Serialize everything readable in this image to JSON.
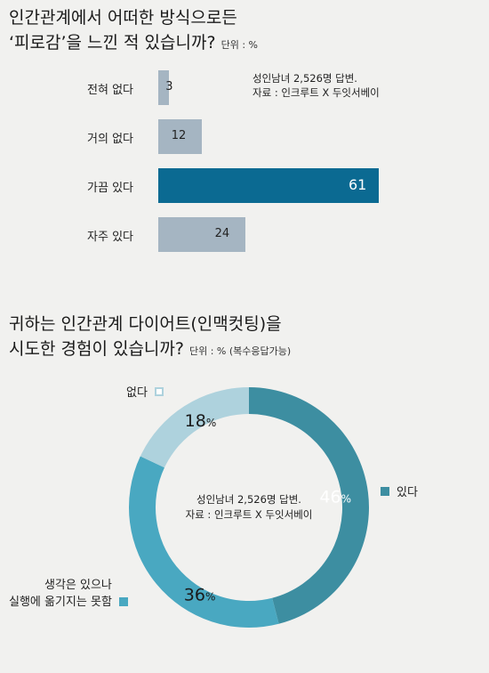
{
  "colors": {
    "bar_light": "#a5b5c2",
    "bar_highlight": "#0b6a92",
    "donut_yes": "#3d8ea1",
    "donut_tried": "#49a8c1",
    "donut_no": "#aed2dd"
  },
  "chart_data": [
    {
      "type": "bar",
      "orientation": "horizontal",
      "title_line1": "인간관계에서 어떠한 방식으로든",
      "title_line2": "‘피로감’을 느낀 적 있습니까?",
      "unit": "단위 : %",
      "note_line1": "성인남녀 2,526명 답변.",
      "note_line2": "자료 : 인크루트 X 두잇서베이",
      "categories": [
        "전혀 없다",
        "거의 없다",
        "가끔 있다",
        "자주 있다"
      ],
      "values": [
        3,
        12,
        61,
        24
      ],
      "highlight": "가끔 있다",
      "xlim": [
        0,
        61
      ]
    },
    {
      "type": "pie",
      "donut": true,
      "title_line1": "귀하는 인간관계 다이어트(인맥컷팅)을",
      "title_line2": "시도한 경험이 있습니까?",
      "unit": "단위 : %  (복수응답가능)",
      "center_line1": "성인남녀 2,526명 답변.",
      "center_line2": "자료 : 인크루트 X 두잇서베이",
      "percent_sign": "%",
      "slices": [
        {
          "label": "있다",
          "value": 46,
          "color": "#3d8ea1"
        },
        {
          "label_line1": "생각은 있으나",
          "label_line2": "실행에 옮기지는 못함",
          "value": 36,
          "color": "#49a8c1"
        },
        {
          "label": "없다",
          "value": 18,
          "color": "#aed2dd"
        }
      ]
    }
  ]
}
